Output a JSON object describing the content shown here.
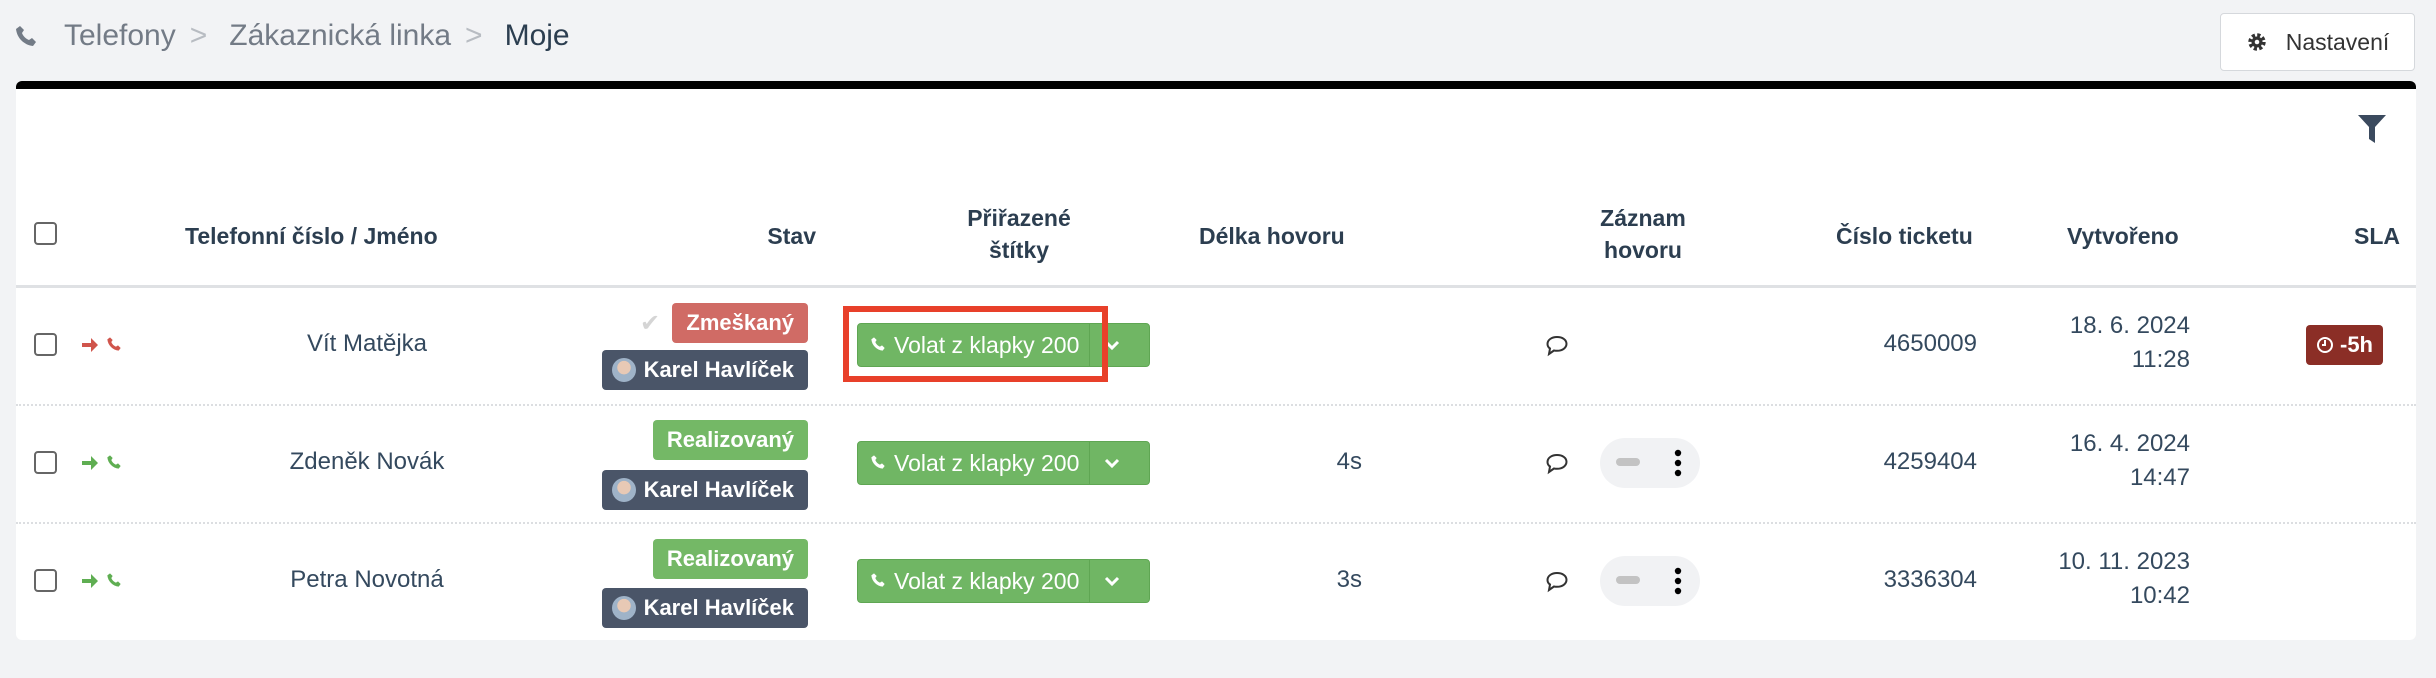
{
  "breadcrumb": {
    "icon": "phone-icon",
    "items": [
      "Telefony",
      "Zákaznická linka"
    ],
    "current": "Moje",
    "separator": ">"
  },
  "settings_button": {
    "label": "Nastavení",
    "icon": "gear-icon"
  },
  "filter_icon": "filter-icon",
  "table": {
    "headers": {
      "phone_name": "Telefonní číslo / Jméno",
      "status": "Stav",
      "tags_line1": "Přiřazené",
      "tags_line2": "štítky",
      "duration": "Délka hovoru",
      "recording_line1": "Záznam",
      "recording_line2": "hovoru",
      "ticket": "Číslo ticketu",
      "created": "Vytvořeno",
      "sla": "SLA"
    },
    "rows": [
      {
        "direction_color": "#d0554c",
        "name": "Vít Matějka",
        "status": "Zmeškaný",
        "status_color": "#d06b65",
        "agent": "Karel Havlíček",
        "call_label": "Volat z klapky 200",
        "duration": "",
        "has_player": false,
        "ticket": "4650009",
        "date": "18. 6. 2024",
        "time": "11:28",
        "sla": "-5h",
        "highlighted": true
      },
      {
        "direction_color": "#5fae52",
        "name": "Zdeněk Novák",
        "status": "Realizovaný",
        "status_color": "#74b866",
        "agent": "Karel Havlíček",
        "call_label": "Volat z klapky 200",
        "duration": "4s",
        "has_player": true,
        "ticket": "4259404",
        "date": "16. 4. 2024",
        "time": "14:47",
        "sla": "",
        "highlighted": false
      },
      {
        "direction_color": "#5fae52",
        "name": "Petra Novotná",
        "status": "Realizovaný",
        "status_color": "#74b866",
        "agent": "Karel Havlíček",
        "call_label": "Volat z klapky 200",
        "duration": "3s",
        "has_player": true,
        "ticket": "3336304",
        "date": "10. 11. 2023",
        "time": "10:42",
        "sla": "",
        "highlighted": false
      }
    ]
  },
  "colors": {
    "agent_badge": "#4a5568",
    "call_button": "#70b664",
    "sla_badge": "#8b2e26",
    "highlight": "#e8402a"
  }
}
